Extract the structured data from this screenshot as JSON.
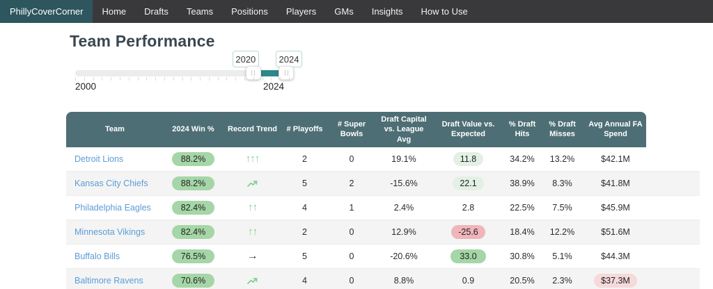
{
  "nav": {
    "brand": "PhillyCoverCorner",
    "items": [
      "Home",
      "Drafts",
      "Teams",
      "Positions",
      "Players",
      "GMs",
      "Insights",
      "How to Use"
    ]
  },
  "page": {
    "title": "Team Performance"
  },
  "slider": {
    "min": 2000,
    "max": 2024,
    "lower": 2020,
    "upper": 2024,
    "lower_value": "2020",
    "upper_value": "2024",
    "min_label": "2000",
    "max_label": "2024"
  },
  "table": {
    "columns": [
      "Team",
      "2024 Win %",
      "Record Trend",
      "# Playoffs",
      "# Super Bowls",
      "Draft Capital vs. League Avg",
      "Draft Value vs. Expected",
      "% Draft Hits",
      "% Draft Misses",
      "Avg Annual FA Spend"
    ],
    "rows": [
      {
        "team": "Detroit Lions",
        "win_pct": "88.2%",
        "trend": "triple-up-arrow",
        "playoffs": "2",
        "super_bowls": "0",
        "draft_capital": "19.1%",
        "draft_value": "11.8",
        "draft_value_style": "light-green",
        "draft_hits": "34.2%",
        "draft_misses": "13.2%",
        "fa_spend": "$42.1M",
        "fa_spend_style": "none"
      },
      {
        "team": "Kansas City Chiefs",
        "win_pct": "88.2%",
        "trend": "trending-up",
        "playoffs": "5",
        "super_bowls": "2",
        "draft_capital": "-15.6%",
        "draft_value": "22.1",
        "draft_value_style": "light-green",
        "draft_hits": "38.9%",
        "draft_misses": "8.3%",
        "fa_spend": "$41.8M",
        "fa_spend_style": "none"
      },
      {
        "team": "Philadelphia Eagles",
        "win_pct": "82.4%",
        "trend": "double-up-arrow",
        "playoffs": "4",
        "super_bowls": "1",
        "draft_capital": "2.4%",
        "draft_value": "2.8",
        "draft_value_style": "none",
        "draft_hits": "22.5%",
        "draft_misses": "7.5%",
        "fa_spend": "$45.9M",
        "fa_spend_style": "none"
      },
      {
        "team": "Minnesota Vikings",
        "win_pct": "82.4%",
        "trend": "double-up-arrow",
        "playoffs": "2",
        "super_bowls": "0",
        "draft_capital": "12.9%",
        "draft_value": "-25.6",
        "draft_value_style": "red",
        "draft_hits": "18.4%",
        "draft_misses": "12.2%",
        "fa_spend": "$51.6M",
        "fa_spend_style": "none"
      },
      {
        "team": "Buffalo Bills",
        "win_pct": "76.5%",
        "trend": "right-arrow",
        "playoffs": "5",
        "super_bowls": "0",
        "draft_capital": "-20.6%",
        "draft_value": "33.0",
        "draft_value_style": "green",
        "draft_hits": "30.8%",
        "draft_misses": "5.1%",
        "fa_spend": "$44.3M",
        "fa_spend_style": "none"
      },
      {
        "team": "Baltimore Ravens",
        "win_pct": "70.6%",
        "trend": "trending-up",
        "playoffs": "4",
        "super_bowls": "0",
        "draft_capital": "8.8%",
        "draft_value": "0.9",
        "draft_value_style": "none",
        "draft_hits": "20.5%",
        "draft_misses": "2.3%",
        "fa_spend": "$37.3M",
        "fa_spend_style": "pink"
      }
    ]
  },
  "colors": {
    "nav_bg": "#39393b",
    "brand_bg": "#2d565e",
    "table_header_bg": "#4d6e74",
    "slider_fill": "#2e8789",
    "link_blue": "#5c9cd6",
    "badge_green": "#a5d6a7",
    "badge_light_green": "#e3f0e4",
    "badge_red": "#efb5ba",
    "badge_pink": "#f5d9db",
    "trend_green": "#85cf90",
    "row_alt": "#f4f4f4"
  }
}
